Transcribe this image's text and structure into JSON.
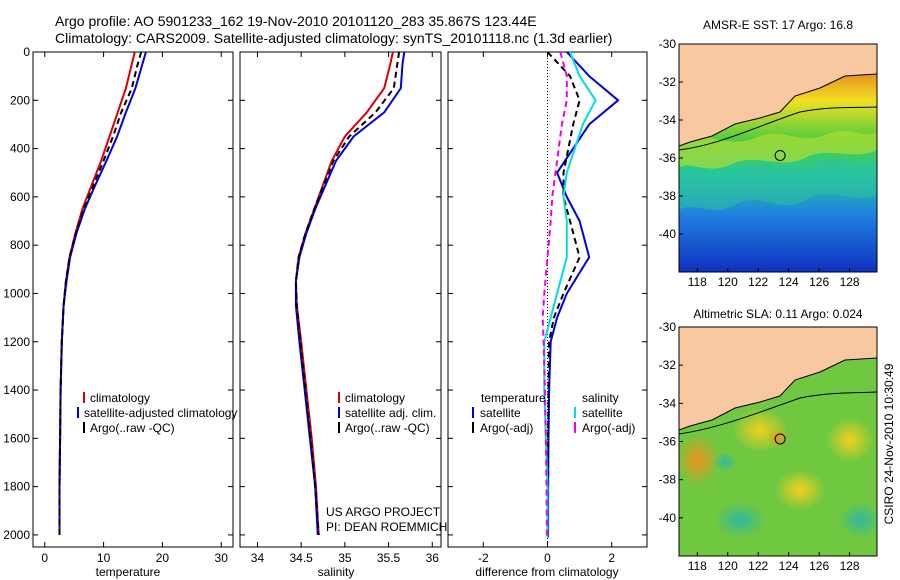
{
  "header": {
    "line1": "Argo profile: AO 5901233_162 19-Nov-2010 20101120_283 35.867S 123.44E",
    "line2": "Climatology: CARS2009. Satellite-adjusted climatology: synTS_20101118.nc (1.3d earlier)"
  },
  "credit": "CSIRO 24-Nov-2010 10:30:49",
  "project": {
    "line1": "US ARGO PROJECT",
    "line2": "PI: DEAN ROEMMICH"
  },
  "colors": {
    "climatology": "#dd0000",
    "satellite": "#0000dd",
    "argo": "#000000",
    "salinity_sat": "#00dddd",
    "salinity_argo": "#ee00ee",
    "land": "#f8c8a0"
  },
  "chart_data": [
    {
      "type": "line",
      "id": "temperature",
      "xlabel": "temperature",
      "ylabel": "",
      "xlim": [
        -2,
        32
      ],
      "ylim": [
        2050,
        0
      ],
      "xticks": [
        0,
        10,
        20,
        30
      ],
      "yticks": [
        0,
        200,
        400,
        600,
        800,
        1000,
        1200,
        1400,
        1600,
        1800,
        2000
      ],
      "legend": [
        "climatology",
        "satellite-adjusted climatology",
        "Argo(..raw -QC)"
      ],
      "series": [
        {
          "name": "climatology",
          "style": "solid",
          "color": "#dd0000",
          "x": [
            15.3,
            14.8,
            13.8,
            12.4,
            11.0,
            9.6,
            8.0,
            6.4,
            5.2,
            4.2,
            3.6,
            3.2,
            2.9,
            2.7,
            2.6,
            2.5,
            2.5
          ],
          "y": [
            0,
            50,
            150,
            250,
            350,
            450,
            550,
            650,
            750,
            850,
            950,
            1050,
            1200,
            1400,
            1600,
            1800,
            2000
          ]
        },
        {
          "name": "satellite-adjusted climatology",
          "style": "solid",
          "color": "#0000dd",
          "x": [
            17.2,
            16.6,
            15.4,
            13.8,
            12.3,
            10.5,
            8.6,
            6.8,
            5.4,
            4.3,
            3.7,
            3.2,
            2.9,
            2.7,
            2.6,
            2.5,
            2.5
          ],
          "y": [
            0,
            50,
            150,
            250,
            350,
            450,
            550,
            650,
            750,
            850,
            950,
            1050,
            1200,
            1400,
            1600,
            1800,
            2000
          ]
        },
        {
          "name": "Argo(..raw -QC)",
          "style": "dashed",
          "color": "#000000",
          "x": [
            16.4,
            15.8,
            14.8,
            13.0,
            11.6,
            10.0,
            8.3,
            6.6,
            5.3,
            4.2,
            3.6,
            3.2,
            2.9,
            2.7,
            2.6,
            2.5,
            2.5
          ],
          "y": [
            0,
            50,
            150,
            250,
            350,
            450,
            550,
            650,
            750,
            850,
            950,
            1050,
            1200,
            1400,
            1600,
            1800,
            2000
          ]
        }
      ]
    },
    {
      "type": "line",
      "id": "salinity",
      "xlabel": "salinity",
      "ylabel": "",
      "xlim": [
        33.8,
        36.1
      ],
      "ylim": [
        2050,
        0
      ],
      "xticks": [
        34,
        34.5,
        35,
        35.5,
        36
      ],
      "xticklabels": [
        "34",
        "34.5",
        "35",
        "35.5",
        "36"
      ],
      "legend": [
        "climatology",
        "satellite adj. clim.",
        "Argo(..raw -QC)"
      ],
      "series": [
        {
          "name": "climatology",
          "style": "solid",
          "color": "#dd0000",
          "x": [
            35.55,
            35.52,
            35.45,
            35.25,
            35.0,
            34.85,
            34.75,
            34.65,
            34.55,
            34.47,
            34.44,
            34.45,
            34.5,
            34.56,
            34.62,
            34.67,
            34.7
          ],
          "y": [
            0,
            50,
            150,
            250,
            350,
            450,
            550,
            650,
            750,
            850,
            950,
            1050,
            1200,
            1400,
            1600,
            1800,
            2000
          ]
        },
        {
          "name": "satellite adj. clim.",
          "style": "solid",
          "color": "#0000dd",
          "x": [
            35.68,
            35.66,
            35.64,
            35.45,
            35.1,
            34.9,
            34.78,
            34.66,
            34.56,
            34.48,
            34.44,
            34.44,
            34.48,
            34.54,
            34.6,
            34.66,
            34.69
          ],
          "y": [
            0,
            50,
            150,
            250,
            350,
            450,
            550,
            650,
            750,
            850,
            950,
            1050,
            1200,
            1400,
            1600,
            1800,
            2000
          ]
        },
        {
          "name": "Argo(..raw -QC)",
          "style": "dashed",
          "color": "#000000",
          "x": [
            35.62,
            35.6,
            35.56,
            35.35,
            35.05,
            34.87,
            34.76,
            34.65,
            34.55,
            34.47,
            34.44,
            34.45,
            34.49,
            34.55,
            34.61,
            34.66,
            34.7
          ],
          "y": [
            0,
            50,
            150,
            250,
            350,
            450,
            550,
            650,
            750,
            850,
            950,
            1050,
            1200,
            1400,
            1600,
            1800,
            2000
          ]
        }
      ]
    },
    {
      "type": "line",
      "id": "difference",
      "xlabel": "difference from climatology",
      "ylabel": "",
      "xlim": [
        -3.1,
        3.1
      ],
      "ylim": [
        2050,
        0
      ],
      "xticks": [
        -2,
        0,
        2
      ],
      "legend_groups": [
        {
          "title": "temperature",
          "entries": [
            "satellite",
            "Argo(-adj)"
          ]
        },
        {
          "title": "salinity",
          "entries": [
            "satellite",
            "Argo(-adj)"
          ]
        }
      ],
      "series": [
        {
          "name": "temperature satellite",
          "style": "solid",
          "color": "#0000dd",
          "x": [
            0.6,
            1.3,
            2.2,
            1.3,
            0.3,
            0.6,
            1.0,
            1.3,
            0.6,
            0.3,
            0.1,
            0.05,
            0.03,
            0.02,
            0.02,
            0.02
          ],
          "y": [
            0,
            100,
            200,
            300,
            500,
            600,
            700,
            850,
            1000,
            1100,
            1200,
            1400,
            1600,
            1800,
            2000,
            2010
          ]
        },
        {
          "name": "temperature Argo(-adj)",
          "style": "dashed",
          "color": "#000000",
          "x": [
            0.0,
            0.7,
            1.0,
            0.8,
            0.5,
            0.5,
            0.7,
            1.0,
            0.5,
            0.2,
            0.05,
            0.03,
            0.02,
            0.02,
            0.01,
            0.01
          ],
          "y": [
            0,
            100,
            200,
            300,
            500,
            600,
            700,
            850,
            1000,
            1100,
            1200,
            1400,
            1600,
            1800,
            2000,
            2010
          ]
        },
        {
          "name": "salinity satellite",
          "style": "solid",
          "color": "#00dddd",
          "x": [
            0.7,
            1.0,
            1.5,
            1.1,
            0.6,
            0.5,
            0.6,
            0.6,
            0.3,
            0.1,
            -0.1,
            -0.1,
            -0.05,
            0.0,
            0.0,
            0.0
          ],
          "y": [
            0,
            100,
            200,
            300,
            500,
            600,
            700,
            850,
            1000,
            1100,
            1200,
            1400,
            1600,
            1800,
            2000,
            2010
          ]
        },
        {
          "name": "salinity Argo(-adj)",
          "style": "dashed",
          "color": "#ee00ee",
          "x": [
            0.4,
            0.6,
            0.6,
            0.45,
            0.25,
            0.15,
            0.1,
            0.0,
            -0.1,
            -0.15,
            -0.12,
            -0.08,
            -0.05,
            -0.03,
            -0.02,
            -0.02
          ],
          "y": [
            0,
            100,
            200,
            300,
            500,
            600,
            700,
            850,
            1000,
            1100,
            1200,
            1400,
            1600,
            1800,
            2000,
            2010
          ]
        }
      ]
    },
    {
      "type": "heatmap",
      "id": "sst-map",
      "title": "AMSR-E SST: 17 Argo: 16.8",
      "xlim": [
        116.8,
        129.8
      ],
      "ylim": [
        -42,
        -30
      ],
      "xticks": [
        118,
        120,
        122,
        124,
        126,
        128
      ],
      "yticks": [
        -30,
        -32,
        -34,
        -36,
        -38,
        -40
      ],
      "marker": {
        "lon": 123.44,
        "lat": -35.867
      }
    },
    {
      "type": "heatmap",
      "id": "sla-map",
      "title": "Altimetric SLA: 0.11 Argo: 0.024",
      "xlim": [
        116.8,
        129.8
      ],
      "ylim": [
        -42,
        -30
      ],
      "xticks": [
        118,
        120,
        122,
        124,
        126,
        128
      ],
      "yticks": [
        -30,
        -32,
        -34,
        -36,
        -38,
        -40
      ],
      "marker": {
        "lon": 123.44,
        "lat": -35.867
      }
    }
  ]
}
